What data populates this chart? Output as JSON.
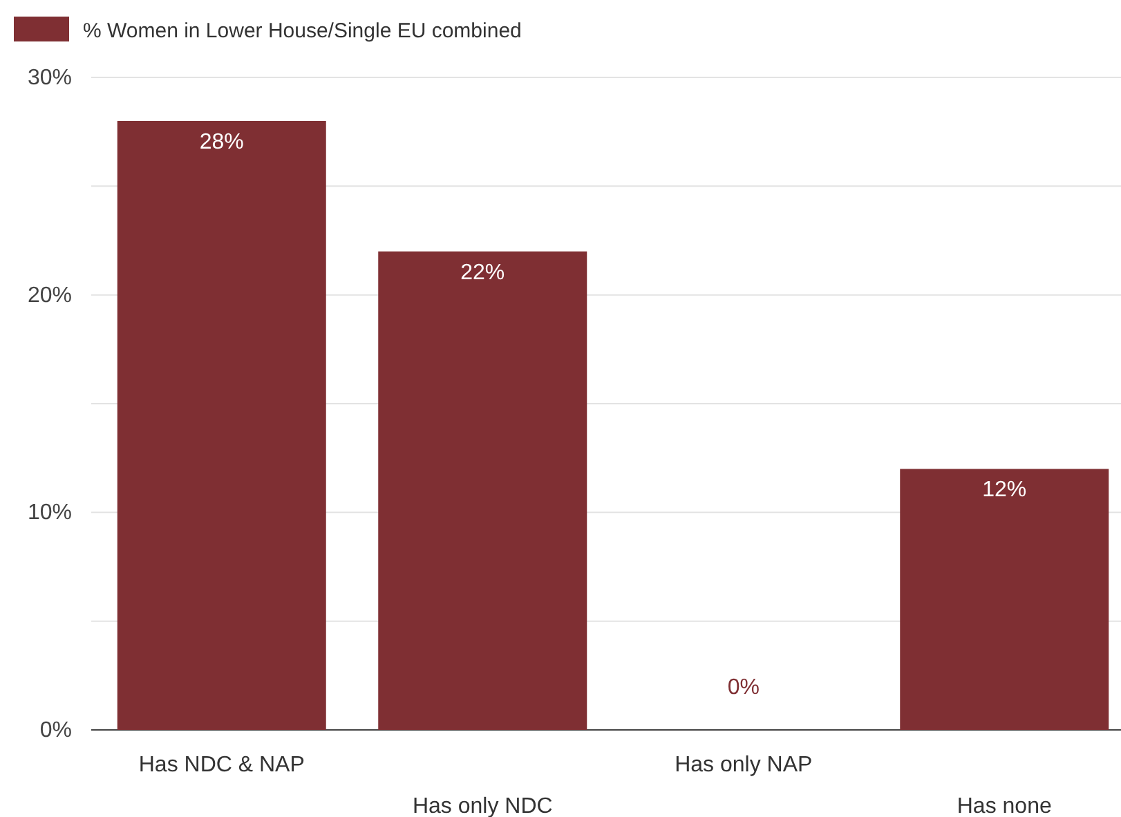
{
  "chart_data": {
    "type": "bar",
    "categories": [
      "Has NDC & NAP",
      "Has only NDC",
      "Has only NAP",
      "Has none"
    ],
    "series": [
      {
        "name": "% Women in Lower House/Single EU combined",
        "color": "#7f2f33",
        "values": [
          28,
          22,
          0,
          12
        ],
        "value_labels": [
          "28%",
          "22%",
          "0%",
          "12%"
        ]
      }
    ],
    "ylim": [
      0,
      30
    ],
    "yticks": [
      {
        "value": 0,
        "label": "0%"
      },
      {
        "value": 5,
        "label": null
      },
      {
        "value": 10,
        "label": "10%"
      },
      {
        "value": 15,
        "label": null
      },
      {
        "value": 20,
        "label": "20%"
      },
      {
        "value": 25,
        "label": null
      },
      {
        "value": 30,
        "label": "30%"
      }
    ],
    "grid": "y",
    "legend": "top left"
  }
}
